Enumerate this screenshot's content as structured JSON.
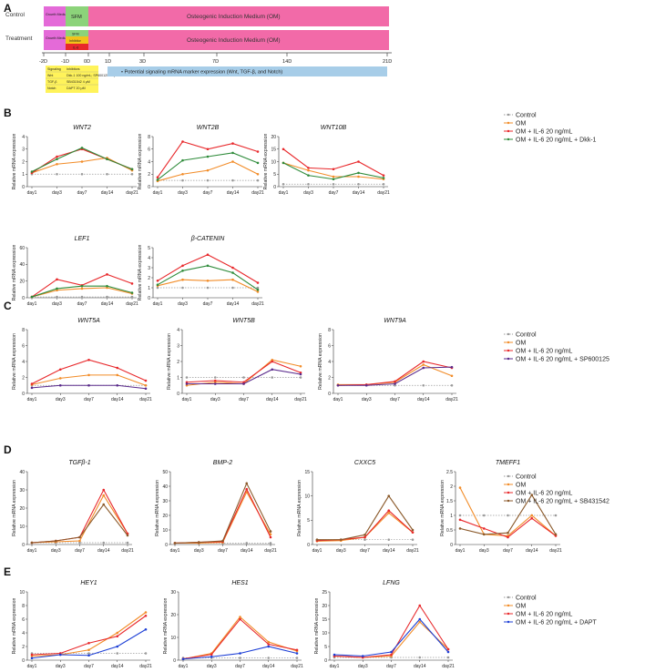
{
  "colors": {
    "control": "#9a9a9a",
    "om": "#f28c28",
    "il6": "#e8282b",
    "dkk": "#2e8b3a",
    "sp": "#5a2a8c",
    "sb": "#8b5a2b",
    "dapt": "#1d3fd6"
  },
  "panel_a": {
    "letter": "A",
    "control_label": "Control",
    "treatment_label": "Treatment",
    "growth_medium": "Growth Medium",
    "sfm": "SFM",
    "om_label": "Osteogenic Induction Medium (OM)",
    "inhibitor": "Inhibitor",
    "il6": "IL-6",
    "days": [
      "-2D",
      "-1D",
      "0D",
      "1D",
      "3D",
      "7D",
      "14D",
      "21D"
    ],
    "marker_note": "• Potential signaling mRNA marker expression (Wnt, TGF-β, and Notch)",
    "inhibitor_table": [
      [
        "Signaling",
        "Inhibitors"
      ],
      [
        "Wnt",
        "Dkk-1 100 ng/mL; SP600125 20 μM"
      ],
      [
        "TGF-β",
        "SB431542 4 μM"
      ],
      [
        "Notch",
        "DAPT 20 μM"
      ]
    ]
  },
  "chart_data": [
    {
      "type": "line",
      "panel": "B",
      "title": "WNT2",
      "ylabel": "Relative mRNA expression",
      "categories": [
        "day1",
        "day3",
        "day7",
        "day14",
        "day21"
      ],
      "ylim": [
        0,
        4
      ],
      "yticks": [
        0,
        1,
        2,
        3,
        4
      ],
      "series": [
        {
          "name": "Control",
          "values": [
            1,
            1,
            1,
            1,
            1
          ]
        },
        {
          "name": "OM",
          "values": [
            1.1,
            1.8,
            2,
            2.3,
            1.3
          ]
        },
        {
          "name": "OM + IL-6 20 ng/mL",
          "values": [
            1.1,
            2.4,
            3,
            2.2,
            1.4
          ]
        },
        {
          "name": "OM + IL-6 20 ng/mL + Dkk-1",
          "values": [
            1.2,
            2.2,
            3.1,
            2.2,
            1.4
          ]
        }
      ]
    },
    {
      "type": "line",
      "panel": "B",
      "title": "WNT2B",
      "ylabel": "Relative mRNA expression",
      "categories": [
        "day1",
        "day3",
        "day7",
        "day14",
        "day21"
      ],
      "ylim": [
        0,
        8
      ],
      "yticks": [
        0,
        2,
        4,
        6,
        8
      ],
      "series": [
        {
          "name": "Control",
          "values": [
            1,
            1,
            1,
            1,
            1
          ]
        },
        {
          "name": "OM",
          "values": [
            0.9,
            2,
            2.6,
            4,
            2
          ]
        },
        {
          "name": "OM + IL-6 20 ng/mL",
          "values": [
            1.5,
            7.2,
            6,
            6.9,
            5.6
          ]
        },
        {
          "name": "OM + IL-6 20 ng/mL + Dkk-1",
          "values": [
            1.1,
            4.2,
            4.8,
            5.4,
            3.8
          ]
        }
      ]
    },
    {
      "type": "line",
      "panel": "B",
      "title": "WNT10B",
      "ylabel": "Relative mRNA expression",
      "categories": [
        "day1",
        "day3",
        "day7",
        "day14",
        "day21"
      ],
      "ylim": [
        0,
        20
      ],
      "yticks": [
        0,
        5,
        10,
        15,
        20
      ],
      "series": [
        {
          "name": "Control",
          "values": [
            1,
            1,
            1,
            1,
            1
          ]
        },
        {
          "name": "OM",
          "values": [
            9.5,
            6.5,
            4,
            4,
            3
          ]
        },
        {
          "name": "OM + IL-6 20 ng/mL",
          "values": [
            15,
            7.5,
            7,
            10,
            4.5
          ]
        },
        {
          "name": "OM + IL-6 20 ng/mL + Dkk-1",
          "values": [
            9.5,
            4.5,
            3,
            5.5,
            3.5
          ]
        }
      ]
    },
    {
      "type": "line",
      "panel": "B",
      "title": "LEF1",
      "ylabel": "Relative mRNA expression",
      "categories": [
        "day1",
        "day3",
        "day7",
        "day14",
        "day21"
      ],
      "ylim": [
        0,
        60
      ],
      "yticks": [
        0,
        20,
        40,
        60
      ],
      "series": [
        {
          "name": "Control",
          "values": [
            1,
            1,
            1,
            1,
            1
          ]
        },
        {
          "name": "OM",
          "values": [
            1,
            9,
            11,
            12,
            5
          ]
        },
        {
          "name": "OM + IL-6 20 ng/mL",
          "values": [
            1,
            22,
            15,
            28,
            17
          ]
        },
        {
          "name": "OM + IL-6 20 ng/mL + Dkk-1",
          "values": [
            1,
            11,
            14,
            14,
            6
          ]
        }
      ]
    },
    {
      "type": "line",
      "panel": "B",
      "title": "β-CATENIN",
      "ylabel": "Relative mRNA expression",
      "categories": [
        "day1",
        "day3",
        "day7",
        "day14",
        "day21"
      ],
      "ylim": [
        0,
        5
      ],
      "yticks": [
        0,
        1,
        2,
        3,
        4,
        5
      ],
      "series": [
        {
          "name": "Control",
          "values": [
            1,
            1,
            1,
            1,
            1
          ]
        },
        {
          "name": "OM",
          "values": [
            1.2,
            1.8,
            1.7,
            1.8,
            0.6
          ]
        },
        {
          "name": "OM + IL-6 20 ng/mL",
          "values": [
            1.7,
            3.2,
            4.3,
            3,
            1.5
          ]
        },
        {
          "name": "OM + IL-6 20 ng/mL + Dkk-1",
          "values": [
            1.3,
            2.7,
            3.2,
            2.5,
            0.8
          ]
        }
      ]
    },
    {
      "type": "line",
      "panel": "C",
      "title": "WNT5A",
      "ylabel": "Relative mRNA expression",
      "categories": [
        "day1",
        "day3",
        "day7",
        "day14",
        "day21"
      ],
      "ylim": [
        0,
        8
      ],
      "yticks": [
        0,
        2,
        4,
        6,
        8
      ],
      "series": [
        {
          "name": "Control",
          "values": [
            1,
            1,
            1,
            1,
            1
          ]
        },
        {
          "name": "OM",
          "values": [
            1.1,
            1.9,
            2.3,
            2.3,
            1
          ]
        },
        {
          "name": "OM + IL-6 20 ng/mL",
          "values": [
            1.2,
            3,
            4.2,
            3.2,
            1.6
          ]
        },
        {
          "name": "OM + IL-6 20 ng/mL + SP600125",
          "values": [
            0.7,
            1,
            1,
            1,
            0.6
          ]
        }
      ]
    },
    {
      "type": "line",
      "panel": "C",
      "title": "WNT5B",
      "ylabel": "Relative mRNA expression",
      "categories": [
        "day1",
        "day3",
        "day7",
        "day14",
        "day21"
      ],
      "ylim": [
        0,
        4
      ],
      "yticks": [
        0,
        1,
        2,
        3,
        4
      ],
      "series": [
        {
          "name": "Control",
          "values": [
            1,
            1,
            1,
            1,
            1
          ]
        },
        {
          "name": "OM",
          "values": [
            0.5,
            0.7,
            0.6,
            2.1,
            1.7
          ]
        },
        {
          "name": "OM + IL-6 20 ng/mL",
          "values": [
            0.7,
            0.8,
            0.7,
            2,
            1.3
          ]
        },
        {
          "name": "OM + IL-6 20 ng/mL + SP600125",
          "values": [
            0.6,
            0.6,
            0.6,
            1.5,
            1.2
          ]
        }
      ]
    },
    {
      "type": "line",
      "panel": "C",
      "title": "WNT9A",
      "ylabel": "Relative mRNA expression",
      "categories": [
        "day1",
        "day3",
        "day7",
        "day14",
        "day21"
      ],
      "ylim": [
        0,
        8
      ],
      "yticks": [
        0,
        2,
        4,
        6,
        8
      ],
      "series": [
        {
          "name": "Control",
          "values": [
            1,
            1,
            1,
            1,
            1
          ]
        },
        {
          "name": "OM",
          "values": [
            1.1,
            1.1,
            1.4,
            3.6,
            2.2
          ]
        },
        {
          "name": "OM + IL-6 20 ng/mL",
          "values": [
            1,
            1.1,
            1.5,
            4,
            3.2
          ]
        },
        {
          "name": "OM + IL-6 20 ng/mL + SP600125",
          "values": [
            1,
            1,
            1.2,
            3.2,
            3.3
          ]
        }
      ]
    },
    {
      "type": "line",
      "panel": "D",
      "title": "TGFβ-1",
      "ylabel": "Relative mRNA expression",
      "categories": [
        "day1",
        "day3",
        "day7",
        "day14",
        "day21"
      ],
      "ylim": [
        0,
        40
      ],
      "yticks": [
        0,
        10,
        20,
        30,
        40
      ],
      "series": [
        {
          "name": "Control",
          "values": [
            1,
            1,
            1,
            1,
            1
          ]
        },
        {
          "name": "OM",
          "values": [
            1,
            1.5,
            2,
            27,
            6
          ]
        },
        {
          "name": "OM + IL-6 20 ng/mL",
          "values": [
            1,
            2,
            4,
            30,
            6
          ]
        },
        {
          "name": "OM + IL-6 20 ng/mL + SB431542",
          "values": [
            1,
            2,
            4,
            22,
            5
          ]
        }
      ]
    },
    {
      "type": "line",
      "panel": "D",
      "title": "BMP-2",
      "ylabel": "Relative mRNA expression",
      "categories": [
        "day1",
        "day3",
        "day7",
        "day14",
        "day21"
      ],
      "ylim": [
        0,
        50
      ],
      "yticks": [
        0,
        10,
        20,
        30,
        40,
        50
      ],
      "series": [
        {
          "name": "Control",
          "values": [
            1,
            1,
            1,
            1,
            1
          ]
        },
        {
          "name": "OM",
          "values": [
            1,
            1,
            1.5,
            36,
            7
          ]
        },
        {
          "name": "OM + IL-6 20 ng/mL",
          "values": [
            1,
            1.5,
            2,
            38,
            5
          ]
        },
        {
          "name": "OM + IL-6 20 ng/mL + SB431542",
          "values": [
            1,
            1.5,
            2.5,
            42,
            9
          ]
        }
      ]
    },
    {
      "type": "line",
      "panel": "D",
      "title": "CXXC5",
      "ylabel": "Relative mRNA expression",
      "categories": [
        "day1",
        "day3",
        "day7",
        "day14",
        "day21"
      ],
      "ylim": [
        0,
        15
      ],
      "yticks": [
        0,
        5,
        10,
        15
      ],
      "series": [
        {
          "name": "Control",
          "values": [
            1,
            1,
            1,
            1,
            1
          ]
        },
        {
          "name": "OM",
          "values": [
            0.7,
            0.8,
            1.5,
            6.5,
            2.5
          ]
        },
        {
          "name": "OM + IL-6 20 ng/mL",
          "values": [
            0.8,
            1,
            1.5,
            7,
            2.5
          ]
        },
        {
          "name": "OM + IL-6 20 ng/mL + SB431542",
          "values": [
            1,
            1,
            2,
            10,
            3
          ]
        }
      ]
    },
    {
      "type": "line",
      "panel": "D",
      "title": "TMEFF1",
      "ylabel": "Relative mRNA expression",
      "categories": [
        "day1",
        "day3",
        "day7",
        "day14",
        "day21"
      ],
      "ylim": [
        0,
        2.5
      ],
      "yticks": [
        0,
        0.5,
        1,
        1.5,
        2,
        2.5
      ],
      "series": [
        {
          "name": "Control",
          "values": [
            1,
            1,
            1,
            1,
            1
          ]
        },
        {
          "name": "OM",
          "values": [
            1.95,
            0.35,
            0.3,
            1,
            0.3
          ]
        },
        {
          "name": "OM + IL-6 20 ng/mL",
          "values": [
            0.85,
            0.55,
            0.25,
            0.9,
            0.3
          ]
        },
        {
          "name": "OM + IL-6 20 ng/mL + SB431542",
          "values": [
            0.55,
            0.35,
            0.4,
            1.7,
            0.35
          ]
        }
      ]
    },
    {
      "type": "line",
      "panel": "E",
      "title": "HEY1",
      "ylabel": "Relative mRNA expression",
      "categories": [
        "day1",
        "day3",
        "day7",
        "day14",
        "day21"
      ],
      "ylim": [
        0,
        10
      ],
      "yticks": [
        0,
        2,
        4,
        6,
        8,
        10
      ],
      "series": [
        {
          "name": "Control",
          "values": [
            1,
            1,
            1,
            1,
            1
          ]
        },
        {
          "name": "OM",
          "values": [
            0.6,
            0.8,
            1.5,
            4,
            7
          ]
        },
        {
          "name": "OM + IL-6 20 ng/mL",
          "values": [
            0.8,
            1,
            2.5,
            3.5,
            6.5
          ]
        },
        {
          "name": "OM + IL-6 20 ng/mL + DAPT",
          "values": [
            0.3,
            0.8,
            0.7,
            2,
            4.5
          ]
        }
      ]
    },
    {
      "type": "line",
      "panel": "E",
      "title": "HES1",
      "ylabel": "Relative mRNA expression",
      "categories": [
        "day1",
        "day3",
        "day7",
        "day14",
        "day21"
      ],
      "ylim": [
        0,
        30
      ],
      "yticks": [
        0,
        10,
        20,
        30
      ],
      "series": [
        {
          "name": "Control",
          "values": [
            1,
            1,
            1,
            1,
            1
          ]
        },
        {
          "name": "OM",
          "values": [
            0.5,
            3,
            19,
            8,
            4
          ]
        },
        {
          "name": "OM + IL-6 20 ng/mL",
          "values": [
            0.6,
            2.5,
            18,
            7,
            4.5
          ]
        },
        {
          "name": "OM + IL-6 20 ng/mL + DAPT",
          "values": [
            0.5,
            1.5,
            3,
            6,
            3
          ]
        }
      ]
    },
    {
      "type": "line",
      "panel": "E",
      "title": "LFNG",
      "ylabel": "Relative mRNA expression",
      "categories": [
        "day1",
        "day3",
        "day7",
        "day14",
        "day21"
      ],
      "ylim": [
        0,
        25
      ],
      "yticks": [
        0,
        5,
        10,
        15,
        20,
        25
      ],
      "series": [
        {
          "name": "Control",
          "values": [
            1,
            1,
            1,
            1,
            1
          ]
        },
        {
          "name": "OM",
          "values": [
            1.5,
            1,
            1.5,
            14,
            4
          ]
        },
        {
          "name": "OM + IL-6 20 ng/mL",
          "values": [
            1.5,
            1,
            2,
            20,
            4
          ]
        },
        {
          "name": "OM + IL-6 20 ng/mL + DAPT",
          "values": [
            2,
            1.5,
            3,
            15,
            3
          ]
        }
      ]
    }
  ],
  "legends": {
    "B": [
      "Control",
      "OM",
      "OM + IL-6 20 ng/mL",
      "OM + IL-6 20 ng/mL + Dkk-1"
    ],
    "C": [
      "Control",
      "OM",
      "OM + IL-6 20 ng/mL",
      "OM + IL-6 20 ng/mL + SP600125"
    ],
    "D": [
      "Control",
      "OM",
      "OM + IL-6 20 ng/mL",
      "OM + IL-6 20 ng/mL + SB431542"
    ],
    "E": [
      "Control",
      "OM",
      "OM + IL-6 20 ng/mL",
      "OM + IL-6 20 ng/mL + DAPT"
    ]
  }
}
